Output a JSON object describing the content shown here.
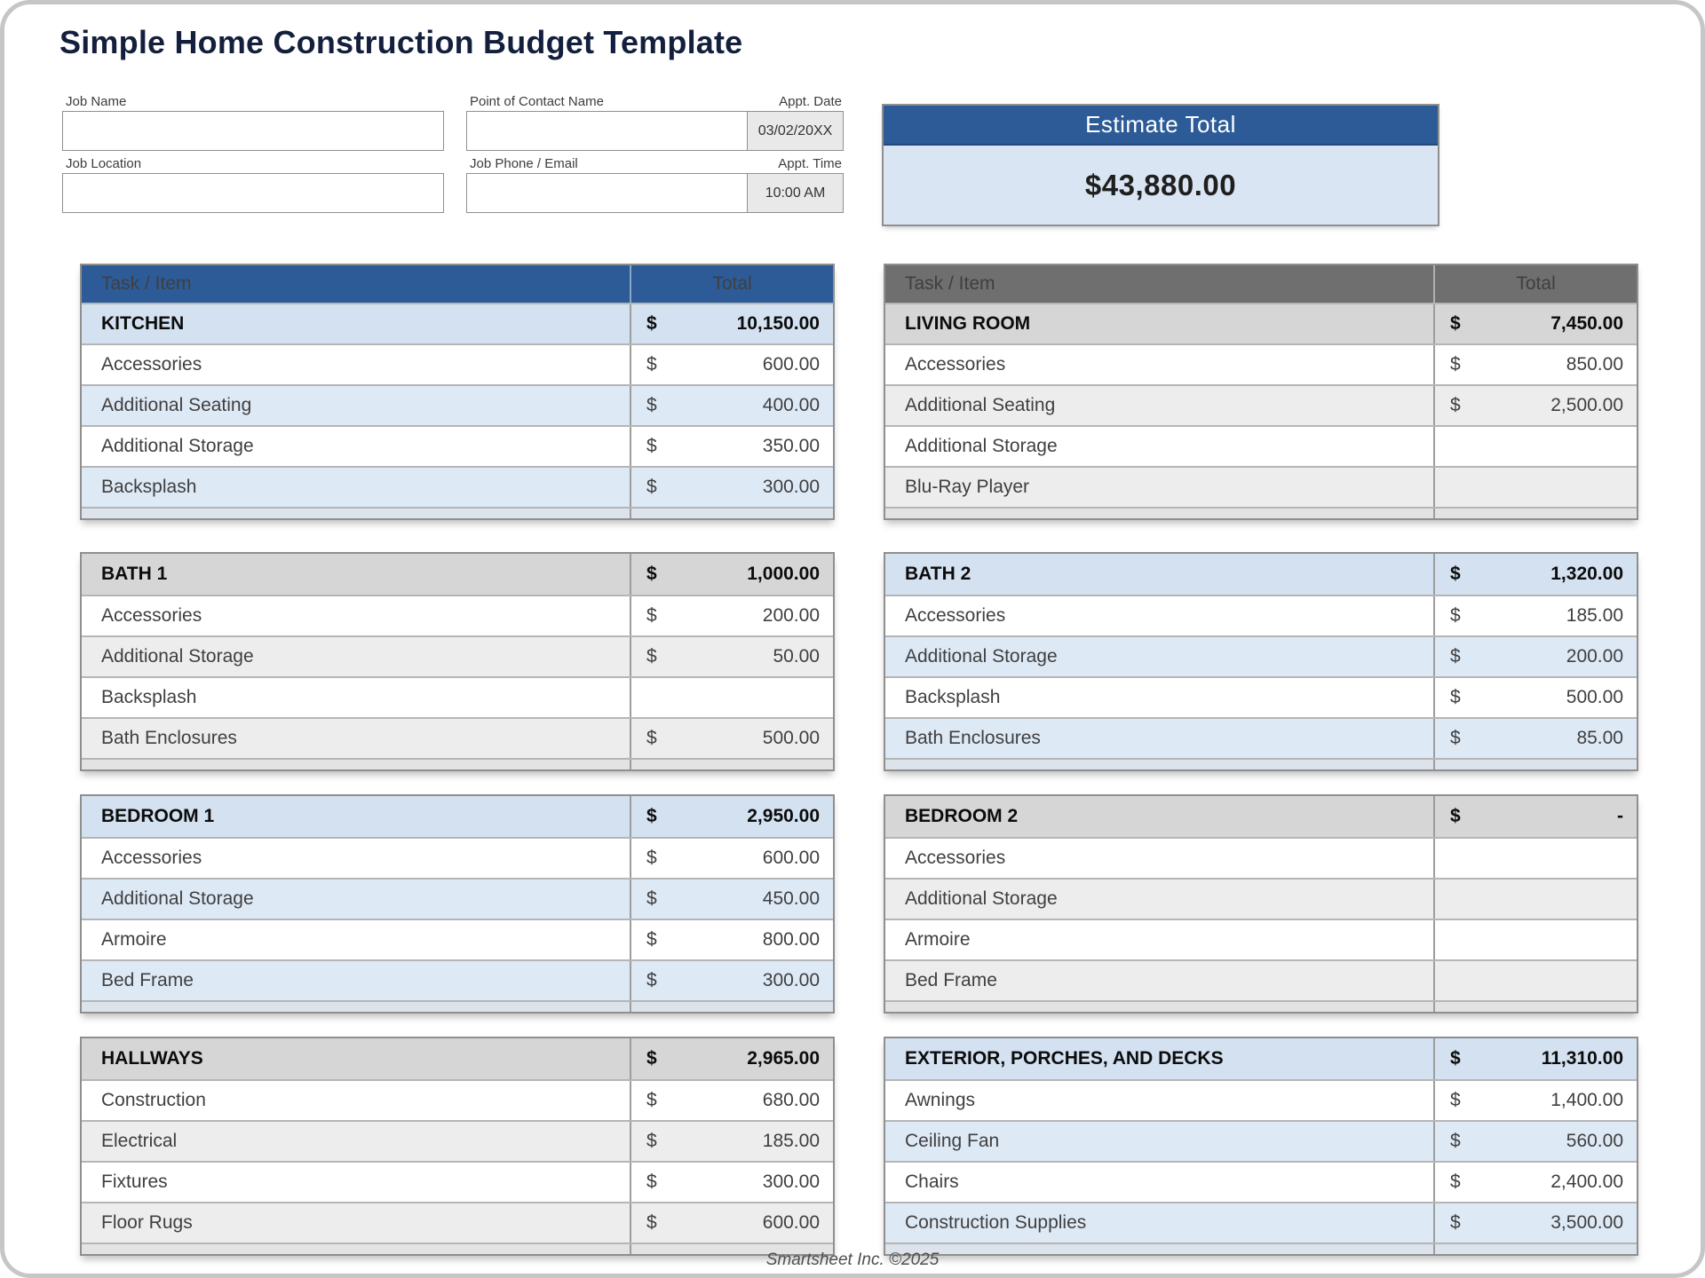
{
  "page": {
    "title": "Simple Home Construction Budget Template",
    "footer": "Smartsheet Inc. ©2025"
  },
  "form": {
    "job_name": {
      "label": "Job Name",
      "value": ""
    },
    "job_location": {
      "label": "Job Location",
      "value": ""
    },
    "contact_name": {
      "label": "Point of Contact Name",
      "value": ""
    },
    "phone_email": {
      "label": "Job Phone / Email",
      "value": ""
    },
    "appt_date": {
      "label": "Appt. Date",
      "value": "03/02/20XX"
    },
    "appt_time": {
      "label": "Appt. Time",
      "value": "10:00 AM"
    }
  },
  "estimate": {
    "label": "Estimate Total",
    "value": "$43,880.00"
  },
  "table_header": {
    "task": "Task / Item",
    "total": "Total"
  },
  "currency": "$",
  "colors": {
    "header_blue": "#2d5b97",
    "header_gray": "#6f6f6f",
    "row_blue": "#dee9f6",
    "row_gray": "#ededed",
    "estimate_body": "#d9e5f3"
  },
  "tables": [
    {
      "name": "KITCHEN",
      "scheme": "blue",
      "has_header": true,
      "total": "10,150.00",
      "rows": [
        {
          "label": "Accessories",
          "value": "600.00"
        },
        {
          "label": "Additional Seating",
          "value": "400.00"
        },
        {
          "label": "Additional Storage",
          "value": "350.00"
        },
        {
          "label": "Backsplash",
          "value": "300.00"
        }
      ]
    },
    {
      "name": "LIVING ROOM",
      "scheme": "gray",
      "has_header": true,
      "total": "7,450.00",
      "rows": [
        {
          "label": "Accessories",
          "value": "850.00"
        },
        {
          "label": "Additional Seating",
          "value": "2,500.00"
        },
        {
          "label": "Additional Storage",
          "value": ""
        },
        {
          "label": "Blu-Ray Player",
          "value": ""
        }
      ]
    },
    {
      "name": "BATH 1",
      "scheme": "gray",
      "has_header": false,
      "total": "1,000.00",
      "rows": [
        {
          "label": "Accessories",
          "value": "200.00"
        },
        {
          "label": "Additional Storage",
          "value": "50.00"
        },
        {
          "label": "Backsplash",
          "value": ""
        },
        {
          "label": "Bath Enclosures",
          "value": "500.00"
        }
      ]
    },
    {
      "name": "BATH 2",
      "scheme": "blue",
      "has_header": false,
      "total": "1,320.00",
      "rows": [
        {
          "label": "Accessories",
          "value": "185.00"
        },
        {
          "label": "Additional Storage",
          "value": "200.00"
        },
        {
          "label": "Backsplash",
          "value": "500.00"
        },
        {
          "label": "Bath Enclosures",
          "value": "85.00"
        }
      ]
    },
    {
      "name": "BEDROOM 1",
      "scheme": "blue",
      "has_header": false,
      "total": "2,950.00",
      "rows": [
        {
          "label": "Accessories",
          "value": "600.00"
        },
        {
          "label": "Additional Storage",
          "value": "450.00"
        },
        {
          "label": "Armoire",
          "value": "800.00"
        },
        {
          "label": "Bed Frame",
          "value": "300.00"
        }
      ]
    },
    {
      "name": "BEDROOM 2",
      "scheme": "gray",
      "has_header": false,
      "total": "-",
      "rows": [
        {
          "label": "Accessories",
          "value": ""
        },
        {
          "label": "Additional Storage",
          "value": ""
        },
        {
          "label": "Armoire",
          "value": ""
        },
        {
          "label": "Bed Frame",
          "value": ""
        }
      ]
    },
    {
      "name": "HALLWAYS",
      "scheme": "gray",
      "has_header": false,
      "total": "2,965.00",
      "rows": [
        {
          "label": "Construction",
          "value": "680.00"
        },
        {
          "label": "Electrical",
          "value": "185.00"
        },
        {
          "label": "Fixtures",
          "value": "300.00"
        },
        {
          "label": "Floor Rugs",
          "value": "600.00"
        }
      ]
    },
    {
      "name": "EXTERIOR, PORCHES, AND DECKS",
      "scheme": "blue",
      "has_header": false,
      "total": "11,310.00",
      "rows": [
        {
          "label": "Awnings",
          "value": "1,400.00"
        },
        {
          "label": "Ceiling Fan",
          "value": "560.00"
        },
        {
          "label": "Chairs",
          "value": "2,400.00"
        },
        {
          "label": "Construction Supplies",
          "value": "3,500.00"
        }
      ]
    }
  ]
}
